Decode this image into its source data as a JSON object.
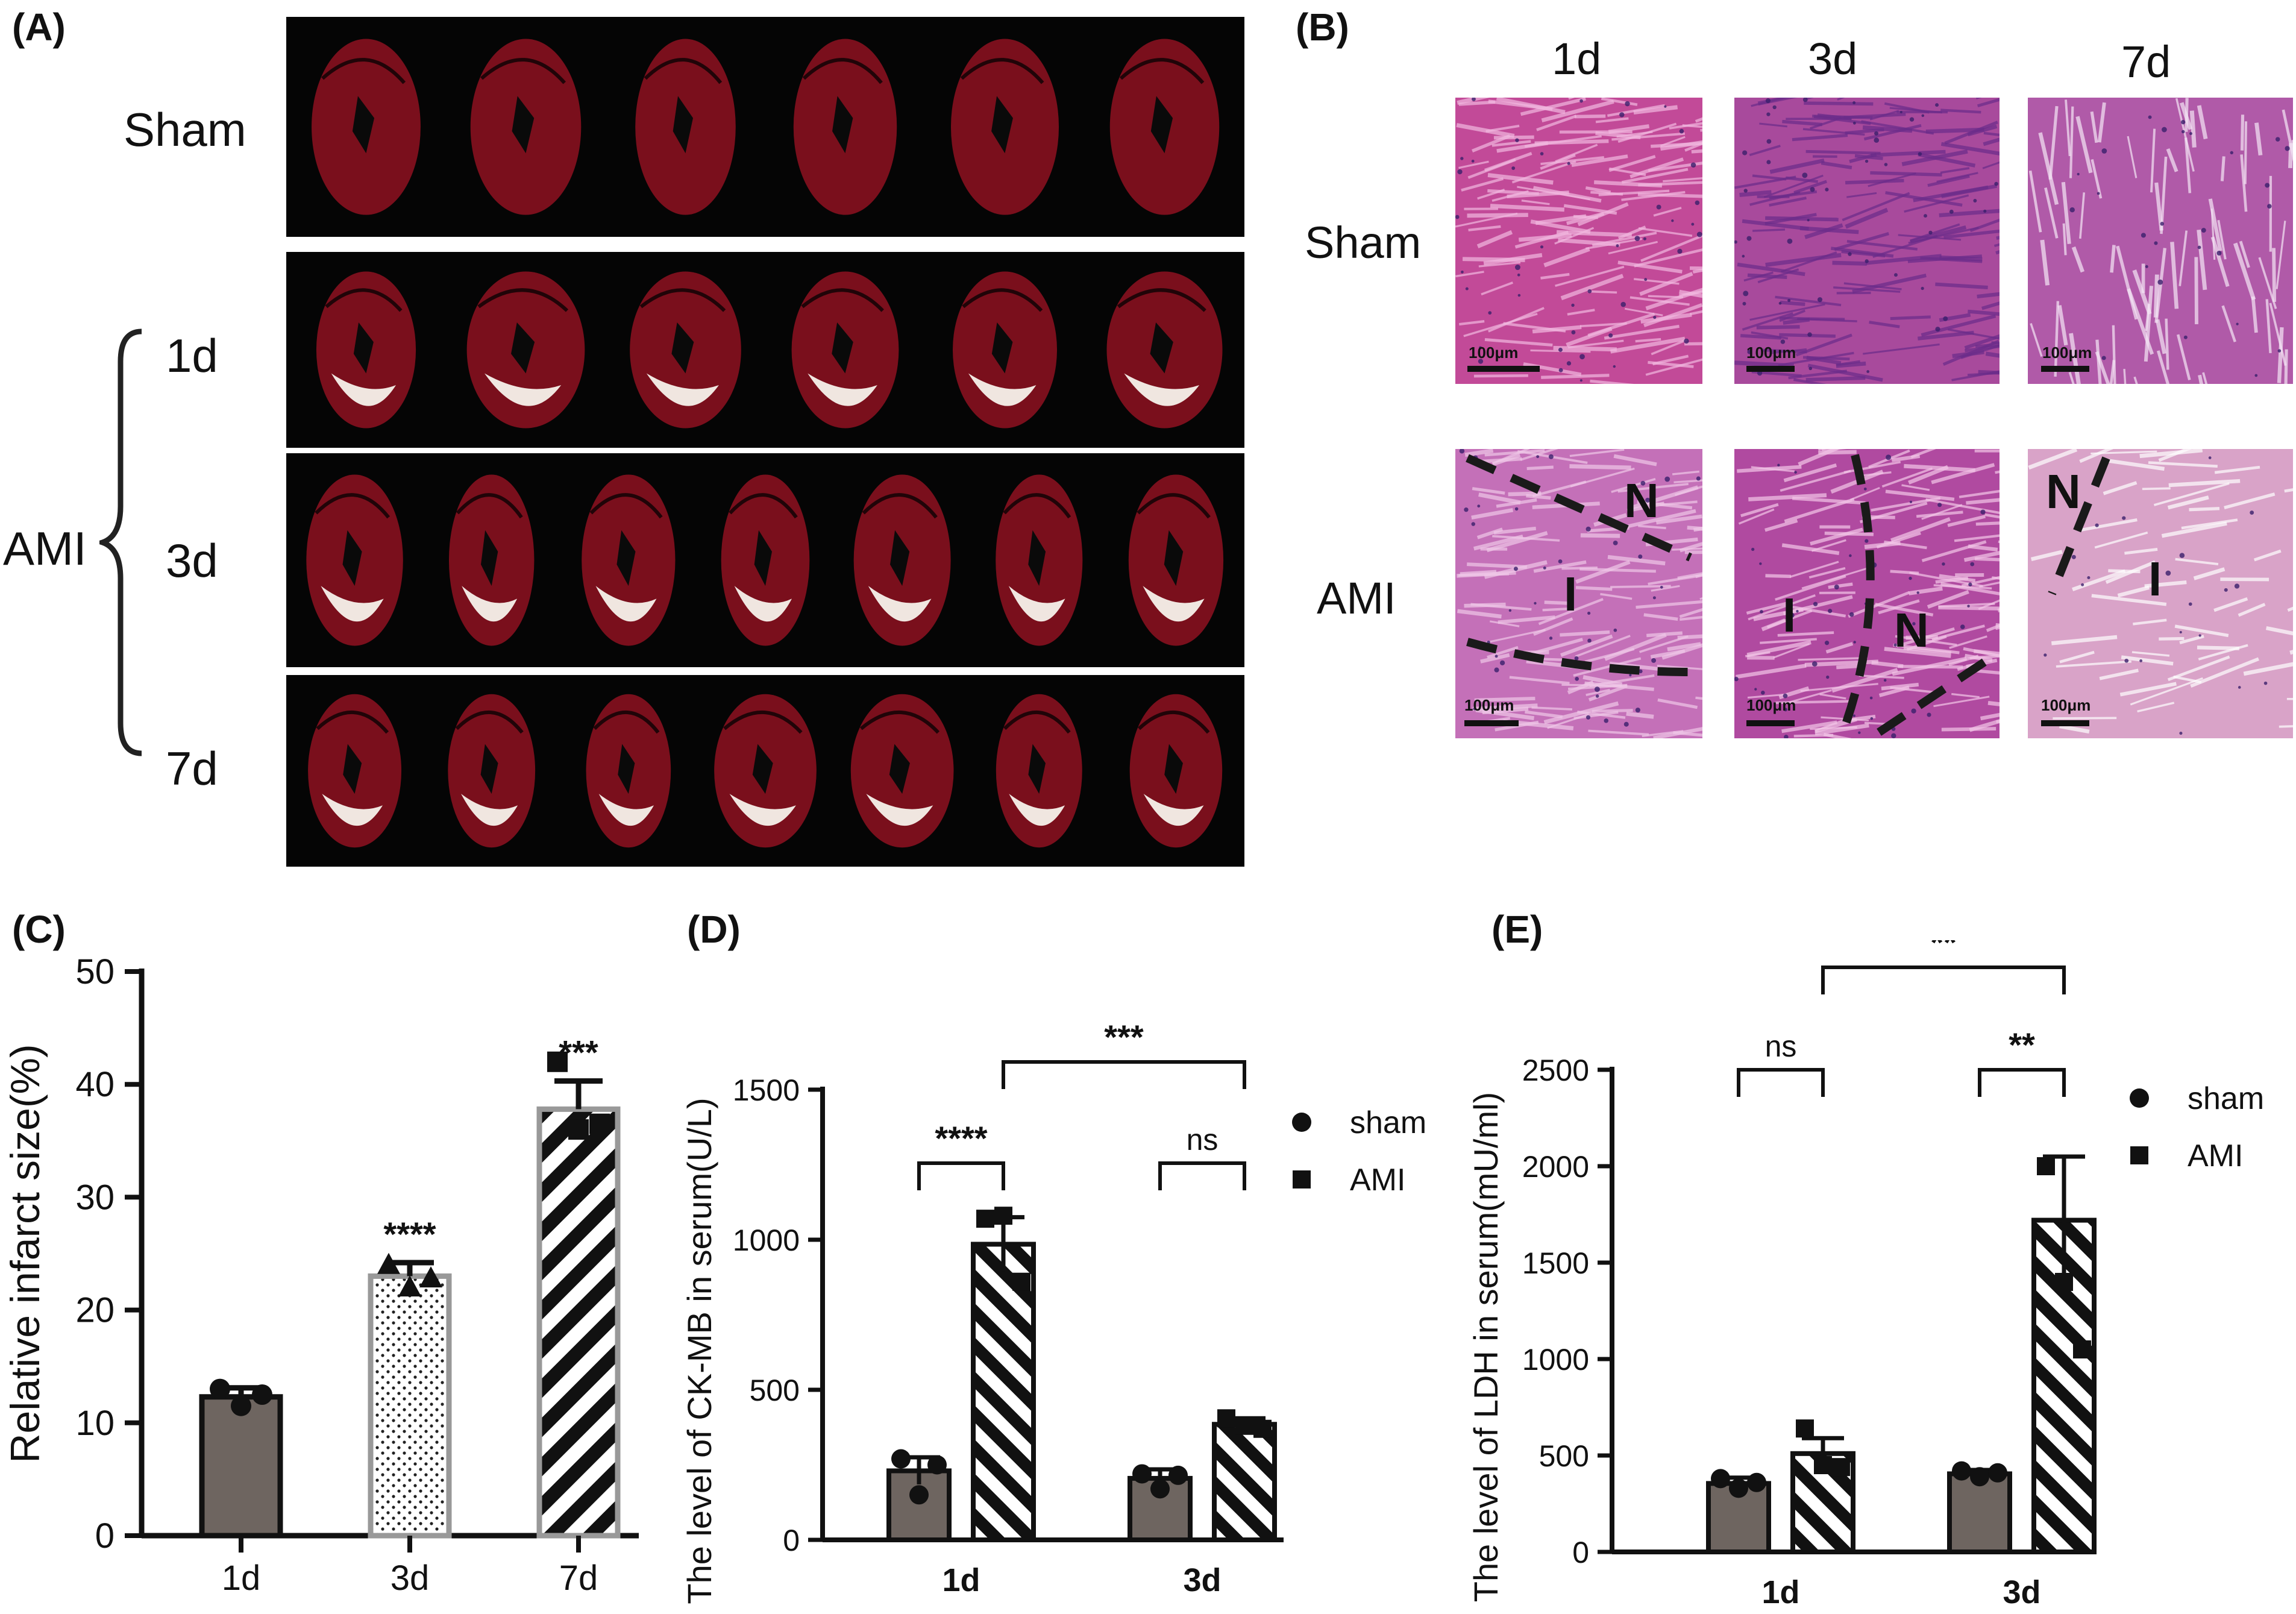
{
  "panelA": {
    "label": "(A)",
    "rows": [
      {
        "label": "Sham",
        "count": 6
      },
      {
        "label": "1d",
        "count": 6
      },
      {
        "label": "3d",
        "count": 7
      },
      {
        "label": "7d",
        "count": 7
      }
    ],
    "group_label": "AMI"
  },
  "panelB": {
    "label": "(B)",
    "columns": [
      "1d",
      "3d",
      "7d"
    ],
    "rows": [
      "Sham",
      "AMI"
    ],
    "scalebar": "100μm",
    "markers": {
      "N": "N",
      "I": "I"
    }
  },
  "panelC": {
    "label": "(C)",
    "chart_data": {
      "type": "bar",
      "categories": [
        "1d",
        "3d",
        "7d"
      ],
      "values": [
        12.3,
        23.0,
        37.8
      ],
      "errors": [
        0.8,
        1.2,
        2.5
      ],
      "points": [
        [
          13,
          11.5,
          12.5
        ],
        [
          24,
          22,
          22.8
        ],
        [
          42,
          36,
          36.5
        ]
      ],
      "significance": [
        "",
        "****",
        "***"
      ],
      "ylabel": "Relative infarct size(%)",
      "ylim": [
        0,
        50
      ],
      "yticks": [
        "0",
        "10",
        "20",
        "30",
        "40",
        "50"
      ]
    }
  },
  "panelD": {
    "label": "(D)",
    "chart_data": {
      "type": "bar",
      "categories": [
        "1d",
        "3d"
      ],
      "series": [
        {
          "name": "sham",
          "values": [
            230,
            205
          ],
          "errors": [
            45,
            30
          ],
          "points": [
            [
              270,
              150,
              250
            ],
            [
              220,
              170,
              215
            ]
          ]
        },
        {
          "name": "AMI",
          "values": [
            985,
            385
          ],
          "errors": [
            90,
            20
          ],
          "points": [
            [
              1070,
              1080,
              860
            ],
            [
              405,
              380,
              370
            ]
          ]
        }
      ],
      "brackets": [
        {
          "label": "****"
        },
        {
          "label": "ns"
        },
        {
          "label": "***"
        }
      ],
      "ylabel": "The level of CK-MB in serum(U/L)",
      "ylim": [
        0,
        1500
      ],
      "yticks": [
        "0",
        "500",
        "1000",
        "1500"
      ]
    }
  },
  "panelE": {
    "label": "(E)",
    "chart_data": {
      "type": "bar",
      "categories": [
        "1d",
        "3d"
      ],
      "series": [
        {
          "name": "sham",
          "values": [
            355,
            405
          ],
          "errors": [
            30,
            20
          ],
          "points": [
            [
              380,
              330,
              360
            ],
            [
              420,
              390,
              410
            ]
          ]
        },
        {
          "name": "AMI",
          "values": [
            510,
            1720
          ],
          "errors": [
            80,
            330
          ],
          "points": [
            [
              640,
              450,
              440
            ],
            [
              2000,
              1400,
              1050
            ]
          ]
        }
      ],
      "brackets": [
        {
          "label": "ns"
        },
        {
          "label": "**"
        },
        {
          "label": "**"
        }
      ],
      "ylabel": "The level of LDH in serum(mU/ml)",
      "ylim": [
        0,
        2500
      ],
      "yticks": [
        "0",
        "500",
        "1000",
        "1500",
        "2000",
        "2500"
      ]
    }
  },
  "legend": {
    "sham": "sham",
    "ami": "AMI"
  },
  "colors": {
    "sham_bar": "#6e6560",
    "tissue_red": "#7a0f1c",
    "he_pink": "#c85a9c",
    "stripe": "#111111"
  }
}
